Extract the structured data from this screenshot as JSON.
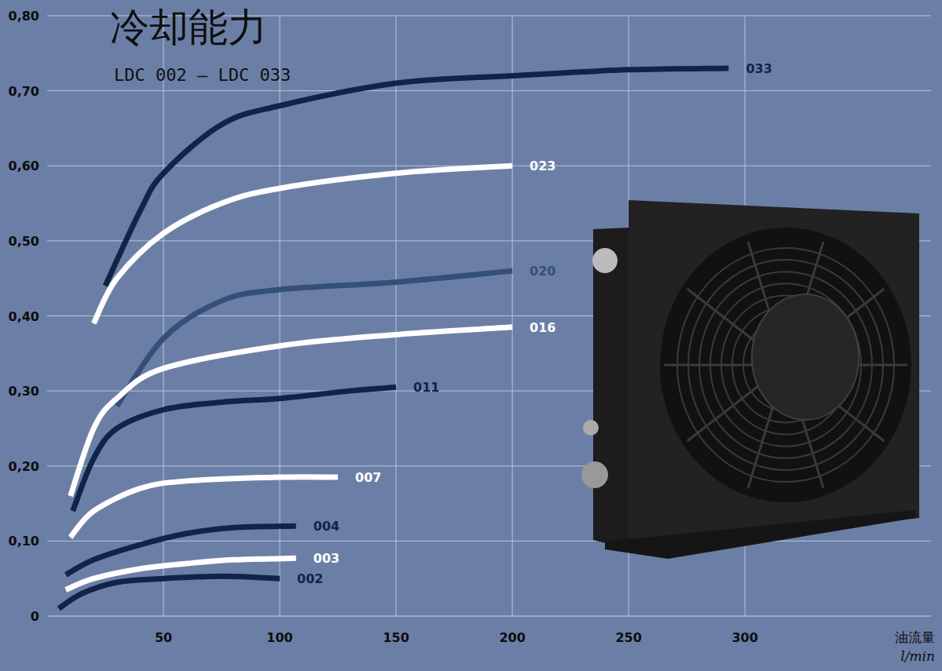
{
  "chart_data": {
    "type": "line",
    "title": "冷却能力",
    "subtitle": "LDC 002 – LDC 033",
    "x_label": "油流量",
    "x_unit": "l/min",
    "xlim": [
      0,
      380
    ],
    "xticks": [
      50,
      100,
      150,
      200,
      250,
      300
    ],
    "ylim": [
      0,
      0.8
    ],
    "yticks": [
      0,
      {
        "value": 0.1,
        "label": "0,10"
      },
      {
        "value": 0.2,
        "label": "0,20"
      },
      {
        "value": 0.3,
        "label": "0,30"
      },
      {
        "value": 0.4,
        "label": "0,40"
      },
      {
        "value": 0.5,
        "label": "0,50"
      },
      {
        "value": 0.6,
        "label": "0,60"
      },
      {
        "value": 0.7,
        "label": "0,70"
      },
      {
        "value": 0.8,
        "label": "0,80"
      }
    ],
    "grid": true,
    "series": [
      {
        "name": "033",
        "color": "#0f2547",
        "x": [
          25,
          40,
          50,
          75,
          100,
          150,
          200,
          250,
          293
        ],
        "values": [
          0.44,
          0.54,
          0.59,
          0.655,
          0.68,
          0.71,
          0.72,
          0.728,
          0.73
        ]
      },
      {
        "name": "023",
        "color": "#ffffff",
        "x": [
          20,
          30,
          50,
          75,
          100,
          150,
          200
        ],
        "values": [
          0.39,
          0.45,
          0.51,
          0.55,
          0.57,
          0.59,
          0.6
        ]
      },
      {
        "name": "020",
        "color": "#34507a",
        "x": [
          30,
          50,
          75,
          100,
          150,
          200
        ],
        "values": [
          0.28,
          0.37,
          0.42,
          0.435,
          0.445,
          0.46
        ]
      },
      {
        "name": "016",
        "color": "#ffffff",
        "x": [
          10,
          20,
          30,
          50,
          100,
          150,
          200
        ],
        "values": [
          0.16,
          0.25,
          0.29,
          0.33,
          0.36,
          0.375,
          0.385
        ]
      },
      {
        "name": "011",
        "color": "#0f2547",
        "x": [
          11,
          20,
          30,
          50,
          75,
          100,
          130,
          150
        ],
        "values": [
          0.14,
          0.21,
          0.25,
          0.275,
          0.285,
          0.29,
          0.3,
          0.305
        ]
      },
      {
        "name": "007",
        "color": "#ffffff",
        "x": [
          10,
          20,
          40,
          60,
          100,
          125
        ],
        "values": [
          0.105,
          0.14,
          0.17,
          0.18,
          0.185,
          0.185
        ]
      },
      {
        "name": "004",
        "color": "#0f2547",
        "x": [
          8,
          20,
          40,
          60,
          80,
          107
        ],
        "values": [
          0.055,
          0.075,
          0.095,
          0.11,
          0.118,
          0.12
        ]
      },
      {
        "name": "003",
        "color": "#ffffff",
        "x": [
          8,
          20,
          40,
          60,
          80,
          107
        ],
        "values": [
          0.035,
          0.05,
          0.063,
          0.07,
          0.075,
          0.077
        ]
      },
      {
        "name": "002",
        "color": "#0f2547",
        "x": [
          5,
          15,
          30,
          50,
          75,
          100
        ],
        "values": [
          0.01,
          0.03,
          0.045,
          0.05,
          0.053,
          0.05
        ]
      }
    ]
  }
}
